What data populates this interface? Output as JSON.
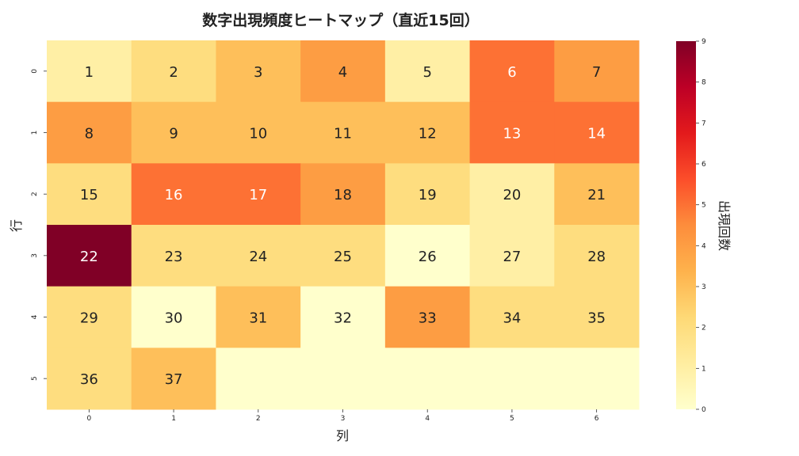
{
  "chart_data": {
    "type": "heatmap",
    "title": "数字出現頻度ヒートマップ（直近15回）",
    "xlabel": "列",
    "ylabel": "行",
    "x_categories": [
      "0",
      "1",
      "2",
      "3",
      "4",
      "5",
      "6"
    ],
    "y_categories": [
      "0",
      "1",
      "2",
      "3",
      "4",
      "5"
    ],
    "values": [
      [
        1,
        2,
        3,
        4,
        1,
        5,
        4
      ],
      [
        4,
        3,
        3,
        3,
        3,
        5,
        5
      ],
      [
        2,
        5,
        5,
        4,
        2,
        1,
        3
      ],
      [
        9,
        2,
        2,
        2,
        0,
        1,
        2
      ],
      [
        2,
        0,
        3,
        0,
        4,
        2,
        2
      ],
      [
        2,
        3,
        0,
        0,
        0,
        0,
        0
      ]
    ],
    "annotations": [
      [
        "1",
        "2",
        "3",
        "4",
        "5",
        "6",
        "7"
      ],
      [
        "8",
        "9",
        "10",
        "11",
        "12",
        "13",
        "14"
      ],
      [
        "15",
        "16",
        "17",
        "18",
        "19",
        "20",
        "21"
      ],
      [
        "22",
        "23",
        "24",
        "25",
        "26",
        "27",
        "28"
      ],
      [
        "29",
        "30",
        "31",
        "32",
        "33",
        "34",
        "35"
      ],
      [
        "36",
        "37",
        "",
        "",
        "",
        "",
        ""
      ]
    ],
    "colorbar": {
      "label": "出現回数",
      "range": [
        0,
        9
      ],
      "ticks": [
        "0",
        "1",
        "2",
        "3",
        "4",
        "5",
        "6",
        "7",
        "8",
        "9"
      ],
      "colormap": "YlOrRd"
    }
  }
}
